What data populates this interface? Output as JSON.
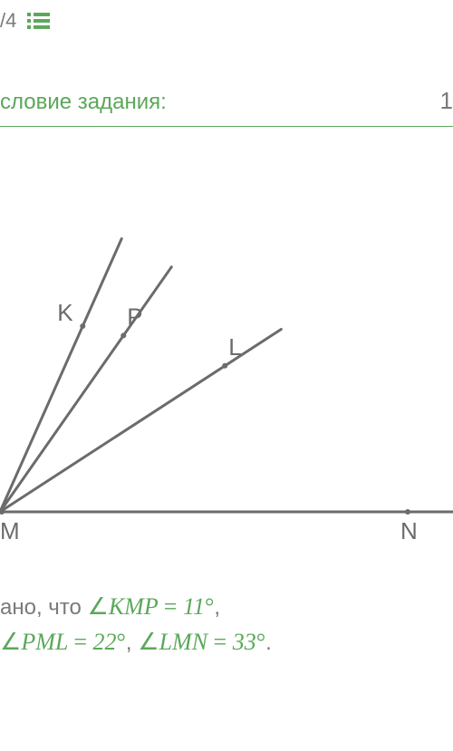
{
  "header": {
    "progress": "/4",
    "section_label": "словие задания:",
    "section_right": "1"
  },
  "diagram": {
    "origin_label": "M",
    "rays": [
      {
        "label": "K",
        "angle_deg": 66,
        "length": 330,
        "label_offset": 0.68
      },
      {
        "label": "P",
        "angle_deg": 55,
        "length": 330,
        "label_offset": 0.72
      },
      {
        "label": "L",
        "angle_deg": 33,
        "length": 370,
        "label_offset": 0.8
      },
      {
        "label": "N",
        "angle_deg": 0,
        "length": 500,
        "label_offset": 0.9
      }
    ],
    "line_color": "#6b6b6b",
    "line_width": 3,
    "label_color": "#6b6b6b",
    "label_fontsize": 26,
    "point_radius": 3
  },
  "given": {
    "prefix": "ано, что",
    "angle1": {
      "name": "KMP",
      "value": "11",
      "unit": "°"
    },
    "angle2": {
      "name": "PML",
      "value": "22",
      "unit": "°"
    },
    "angle3": {
      "name": "LMN",
      "value": "33",
      "unit": "°"
    }
  },
  "colors": {
    "accent": "#5aa85a",
    "text_muted": "#7a7a7a",
    "line": "#6b6b6b"
  }
}
